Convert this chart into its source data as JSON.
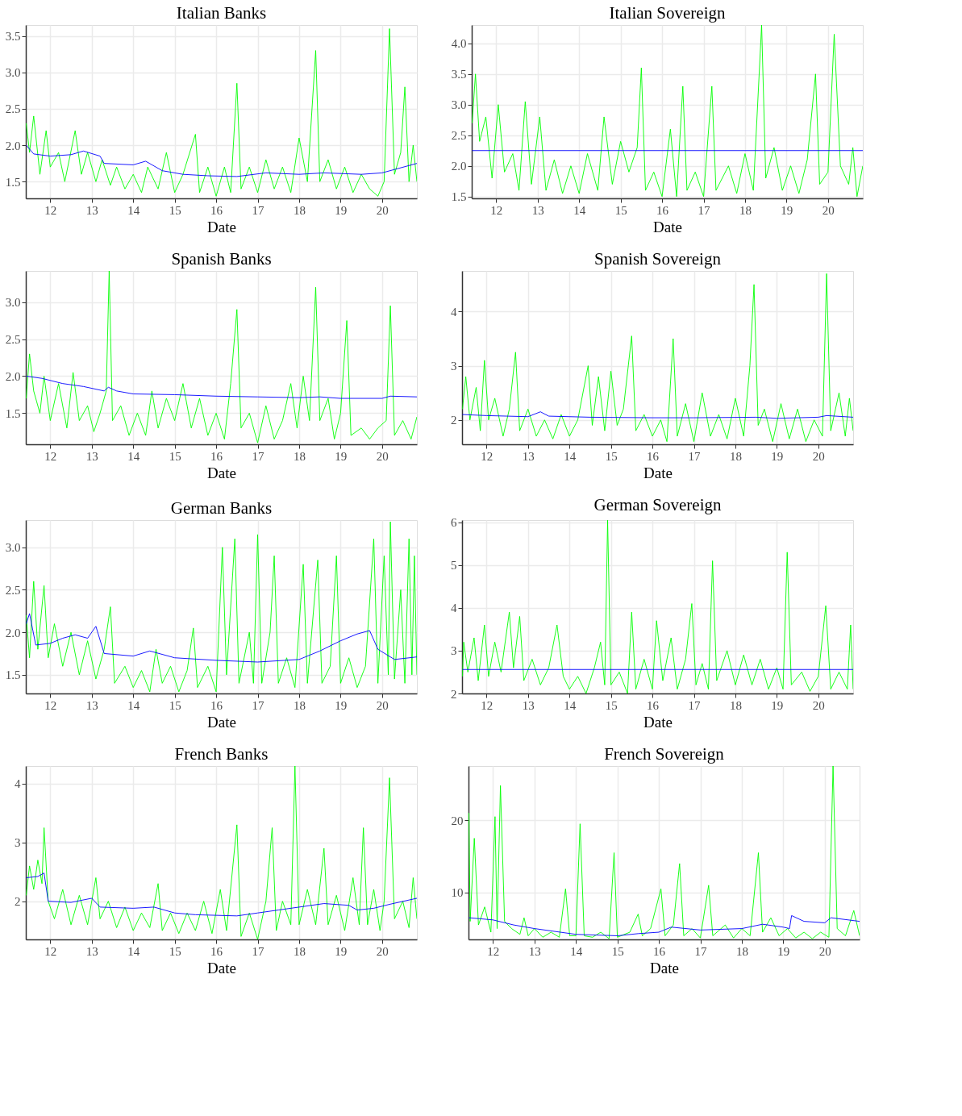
{
  "chart_data": [
    {
      "type": "line",
      "title": "Italian Banks",
      "xlabel": "Date",
      "grid": true,
      "xlim": [
        2011.41,
        2020.84
      ],
      "xticks": [
        {
          "value": 2012,
          "label": "12"
        },
        {
          "value": 2013,
          "label": "13"
        },
        {
          "value": 2014,
          "label": "14"
        },
        {
          "value": 2015,
          "label": "15"
        },
        {
          "value": 2016,
          "label": "16"
        },
        {
          "value": 2017,
          "label": "17"
        },
        {
          "value": 2018,
          "label": "18"
        },
        {
          "value": 2019,
          "label": "19"
        },
        {
          "value": 2020,
          "label": "20"
        }
      ],
      "ylim": [
        1.27,
        3.65
      ],
      "yticks": [
        1.5,
        {
          "value": 2,
          "label": "2.0"
        },
        2.5,
        {
          "value": 3,
          "label": "3.0"
        },
        3.5
      ],
      "series": [
        {
          "color": "#00ff00",
          "x": [
            2011.42,
            2011.5,
            2011.6,
            2011.75,
            2011.9,
            2012.0,
            2012.2,
            2012.35,
            2012.6,
            2012.75,
            2012.9,
            2013.1,
            2013.25,
            2013.45,
            2013.6,
            2013.8,
            2014.0,
            2014.2,
            2014.35,
            2014.6,
            2014.8,
            2015.0,
            2015.2,
            2015.5,
            2015.6,
            2015.8,
            2016.0,
            2016.2,
            2016.35,
            2016.5,
            2016.6,
            2016.8,
            2017.0,
            2017.2,
            2017.4,
            2017.6,
            2017.8,
            2018.0,
            2018.2,
            2018.4,
            2018.5,
            2018.7,
            2018.9,
            2019.1,
            2019.3,
            2019.5,
            2019.7,
            2019.9,
            2020.05,
            2020.18,
            2020.3,
            2020.45,
            2020.55,
            2020.65,
            2020.75,
            2020.84
          ],
          "values": [
            2.3,
            1.9,
            2.4,
            1.6,
            2.2,
            1.7,
            1.9,
            1.5,
            2.2,
            1.6,
            1.9,
            1.5,
            1.8,
            1.45,
            1.7,
            1.4,
            1.6,
            1.35,
            1.7,
            1.4,
            1.9,
            1.35,
            1.6,
            2.15,
            1.35,
            1.7,
            1.3,
            1.7,
            1.35,
            2.85,
            1.4,
            1.7,
            1.35,
            1.8,
            1.4,
            1.7,
            1.35,
            2.1,
            1.5,
            3.3,
            1.5,
            1.8,
            1.4,
            1.7,
            1.35,
            1.6,
            1.4,
            1.3,
            1.5,
            3.6,
            1.6,
            1.9,
            2.8,
            1.5,
            2.0,
            1.5
          ]
        },
        {
          "color": "#0000ff",
          "x": [
            2011.42,
            2011.6,
            2012.0,
            2012.5,
            2012.8,
            2013.2,
            2013.3,
            2014.0,
            2014.3,
            2014.7,
            2015.2,
            2015.8,
            2016.5,
            2017.2,
            2018.0,
            2018.6,
            2019.5,
            2020.0,
            2020.84
          ],
          "values": [
            2.0,
            1.88,
            1.85,
            1.87,
            1.92,
            1.85,
            1.75,
            1.73,
            1.78,
            1.65,
            1.6,
            1.58,
            1.57,
            1.62,
            1.6,
            1.62,
            1.6,
            1.62,
            1.75
          ]
        }
      ]
    },
    {
      "type": "line",
      "title": "Italian Sovereign",
      "xlabel": "Date",
      "grid": true,
      "xlim": [
        2011.41,
        2020.84
      ],
      "xticks": [
        {
          "value": 2012,
          "label": "12"
        },
        {
          "value": 2013,
          "label": "13"
        },
        {
          "value": 2014,
          "label": "14"
        },
        {
          "value": 2015,
          "label": "15"
        },
        {
          "value": 2016,
          "label": "16"
        },
        {
          "value": 2017,
          "label": "17"
        },
        {
          "value": 2018,
          "label": "18"
        },
        {
          "value": 2019,
          "label": "19"
        },
        {
          "value": 2020,
          "label": "20"
        }
      ],
      "ylim": [
        1.47,
        4.3
      ],
      "yticks": [
        1.5,
        {
          "value": 2,
          "label": "2.0"
        },
        2.5,
        {
          "value": 3,
          "label": "3.0"
        },
        3.5,
        {
          "value": 4,
          "label": "4.0"
        }
      ],
      "series": [
        {
          "color": "#00ff00",
          "x": [
            2011.42,
            2011.5,
            2011.6,
            2011.75,
            2011.9,
            2012.05,
            2012.2,
            2012.4,
            2012.55,
            2012.7,
            2012.85,
            2013.05,
            2013.2,
            2013.4,
            2013.6,
            2013.8,
            2014.0,
            2014.2,
            2014.45,
            2014.6,
            2014.8,
            2015.0,
            2015.2,
            2015.4,
            2015.5,
            2015.6,
            2015.8,
            2016.0,
            2016.2,
            2016.35,
            2016.5,
            2016.6,
            2016.8,
            2017.0,
            2017.2,
            2017.3,
            2017.6,
            2017.8,
            2018.0,
            2018.2,
            2018.4,
            2018.5,
            2018.7,
            2018.9,
            2019.1,
            2019.3,
            2019.5,
            2019.7,
            2019.8,
            2020.0,
            2020.15,
            2020.3,
            2020.5,
            2020.6,
            2020.7,
            2020.84
          ],
          "values": [
            2.7,
            3.5,
            2.4,
            2.8,
            1.8,
            3.0,
            1.9,
            2.2,
            1.6,
            3.05,
            1.7,
            2.8,
            1.6,
            2.1,
            1.55,
            2.0,
            1.55,
            2.2,
            1.6,
            2.8,
            1.7,
            2.4,
            1.9,
            2.3,
            3.6,
            1.6,
            1.9,
            1.5,
            2.6,
            1.5,
            3.3,
            1.6,
            1.9,
            1.5,
            3.3,
            1.6,
            2.0,
            1.55,
            2.2,
            1.6,
            4.3,
            1.8,
            2.3,
            1.6,
            2.0,
            1.55,
            2.1,
            3.5,
            1.7,
            1.9,
            4.15,
            2.0,
            1.7,
            2.3,
            1.5,
            2.0
          ]
        },
        {
          "color": "#0000ff",
          "x": [
            2011.42,
            2020.84
          ],
          "values": [
            2.25,
            2.25
          ]
        }
      ]
    },
    {
      "type": "line",
      "title": "Spanish Banks",
      "xlabel": "Date",
      "grid": true,
      "xlim": [
        2011.41,
        2020.84
      ],
      "xticks": [
        {
          "value": 2012,
          "label": "12"
        },
        {
          "value": 2013,
          "label": "13"
        },
        {
          "value": 2014,
          "label": "14"
        },
        {
          "value": 2015,
          "label": "15"
        },
        {
          "value": 2016,
          "label": "16"
        },
        {
          "value": 2017,
          "label": "17"
        },
        {
          "value": 2018,
          "label": "18"
        },
        {
          "value": 2019,
          "label": "19"
        },
        {
          "value": 2020,
          "label": "20"
        }
      ],
      "ylim": [
        1.08,
        3.42
      ],
      "yticks": [
        1.5,
        {
          "value": 2,
          "label": "2.0"
        },
        2.5,
        {
          "value": 3,
          "label": "3.0"
        }
      ],
      "series": [
        {
          "color": "#00ff00",
          "x": [
            2011.42,
            2011.5,
            2011.6,
            2011.75,
            2011.85,
            2012.0,
            2012.2,
            2012.4,
            2012.55,
            2012.7,
            2012.9,
            2013.05,
            2013.2,
            2013.35,
            2013.42,
            2013.5,
            2013.7,
            2013.9,
            2014.1,
            2014.3,
            2014.45,
            2014.6,
            2014.8,
            2015.0,
            2015.2,
            2015.4,
            2015.6,
            2015.8,
            2016.0,
            2016.2,
            2016.35,
            2016.5,
            2016.6,
            2016.8,
            2017.0,
            2017.2,
            2017.4,
            2017.6,
            2017.8,
            2017.95,
            2018.1,
            2018.25,
            2018.4,
            2018.5,
            2018.7,
            2018.85,
            2019.0,
            2019.15,
            2019.25,
            2019.5,
            2019.7,
            2019.9,
            2020.1,
            2020.2,
            2020.3,
            2020.5,
            2020.7,
            2020.84
          ],
          "values": [
            1.7,
            2.3,
            1.8,
            1.5,
            2.0,
            1.4,
            1.9,
            1.3,
            2.05,
            1.4,
            1.6,
            1.25,
            1.5,
            1.8,
            3.42,
            1.4,
            1.6,
            1.2,
            1.5,
            1.2,
            1.8,
            1.3,
            1.7,
            1.4,
            1.9,
            1.3,
            1.7,
            1.2,
            1.5,
            1.15,
            1.9,
            2.9,
            1.3,
            1.5,
            1.1,
            1.6,
            1.15,
            1.4,
            1.9,
            1.3,
            2.0,
            1.4,
            3.2,
            1.4,
            1.7,
            1.15,
            1.5,
            2.75,
            1.2,
            1.3,
            1.15,
            1.3,
            1.4,
            2.95,
            1.2,
            1.4,
            1.15,
            1.45
          ]
        },
        {
          "color": "#0000ff",
          "x": [
            2011.42,
            2011.8,
            2012.3,
            2012.8,
            2013.3,
            2013.4,
            2013.6,
            2014.0,
            2015.0,
            2016.0,
            2017.0,
            2018.0,
            2018.5,
            2019.0,
            2020.0,
            2020.2,
            2020.84
          ],
          "values": [
            2.0,
            1.97,
            1.9,
            1.86,
            1.8,
            1.85,
            1.8,
            1.76,
            1.75,
            1.73,
            1.72,
            1.71,
            1.72,
            1.7,
            1.7,
            1.73,
            1.72
          ]
        }
      ]
    },
    {
      "type": "line",
      "title": "Spanish Sovereign",
      "xlabel": "Date",
      "grid": true,
      "xlim": [
        2011.41,
        2020.84
      ],
      "xticks": [
        {
          "value": 2012,
          "label": "12"
        },
        {
          "value": 2013,
          "label": "13"
        },
        {
          "value": 2014,
          "label": "14"
        },
        {
          "value": 2015,
          "label": "15"
        },
        {
          "value": 2016,
          "label": "16"
        },
        {
          "value": 2017,
          "label": "17"
        },
        {
          "value": 2018,
          "label": "18"
        },
        {
          "value": 2019,
          "label": "19"
        },
        {
          "value": 2020,
          "label": "20"
        }
      ],
      "ylim": [
        1.55,
        4.75
      ],
      "yticks": [
        2,
        3,
        4
      ],
      "series": [
        {
          "color": "#00ff00",
          "x": [
            2011.42,
            2011.5,
            2011.6,
            2011.75,
            2011.85,
            2011.95,
            2012.05,
            2012.2,
            2012.4,
            2012.55,
            2012.7,
            2012.8,
            2013.0,
            2013.2,
            2013.4,
            2013.6,
            2013.8,
            2014.0,
            2014.2,
            2014.45,
            2014.55,
            2014.7,
            2014.85,
            2015.0,
            2015.15,
            2015.3,
            2015.5,
            2015.6,
            2015.8,
            2016.0,
            2016.2,
            2016.35,
            2016.5,
            2016.6,
            2016.8,
            2017.0,
            2017.2,
            2017.4,
            2017.6,
            2017.8,
            2018.0,
            2018.2,
            2018.35,
            2018.45,
            2018.55,
            2018.7,
            2018.9,
            2019.1,
            2019.3,
            2019.5,
            2019.7,
            2019.9,
            2020.1,
            2020.2,
            2020.3,
            2020.5,
            2020.65,
            2020.75,
            2020.84
          ],
          "values": [
            2.2,
            2.8,
            2.0,
            2.6,
            1.8,
            3.1,
            2.0,
            2.4,
            1.7,
            2.2,
            3.25,
            1.8,
            2.2,
            1.7,
            2.0,
            1.65,
            2.1,
            1.7,
            2.0,
            3.0,
            1.9,
            2.8,
            1.8,
            2.9,
            1.9,
            2.2,
            3.55,
            1.8,
            2.1,
            1.7,
            2.0,
            1.6,
            3.5,
            1.7,
            2.3,
            1.6,
            2.5,
            1.7,
            2.1,
            1.65,
            2.4,
            1.7,
            3.0,
            4.5,
            1.9,
            2.2,
            1.6,
            2.3,
            1.65,
            2.2,
            1.6,
            2.0,
            1.7,
            4.7,
            1.8,
            2.5,
            1.7,
            2.4,
            1.8
          ]
        },
        {
          "color": "#0000ff",
          "x": [
            2011.42,
            2012.0,
            2013.0,
            2013.3,
            2013.5,
            2014.5,
            2016.0,
            2017.0,
            2018.5,
            2019.0,
            2020.0,
            2020.2,
            2020.84
          ],
          "values": [
            2.1,
            2.08,
            2.06,
            2.15,
            2.07,
            2.05,
            2.04,
            2.04,
            2.05,
            2.03,
            2.05,
            2.08,
            2.05
          ]
        }
      ]
    },
    {
      "type": "line",
      "title": "German Banks",
      "xlabel": "Date",
      "grid": true,
      "xlim": [
        2011.41,
        2020.84
      ],
      "xticks": [
        {
          "value": 2012,
          "label": "12"
        },
        {
          "value": 2013,
          "label": "13"
        },
        {
          "value": 2014,
          "label": "14"
        },
        {
          "value": 2015,
          "label": "15"
        },
        {
          "value": 2016,
          "label": "16"
        },
        {
          "value": 2017,
          "label": "17"
        },
        {
          "value": 2018,
          "label": "18"
        },
        {
          "value": 2019,
          "label": "19"
        },
        {
          "value": 2020,
          "label": "20"
        }
      ],
      "ylim": [
        1.28,
        3.32
      ],
      "yticks": [
        1.5,
        {
          "value": 2,
          "label": "2.0"
        },
        2.5,
        {
          "value": 3,
          "label": "3.0"
        }
      ],
      "series": [
        {
          "color": "#00ff00",
          "x": [
            2011.42,
            2011.5,
            2011.6,
            2011.7,
            2011.85,
            2011.95,
            2012.1,
            2012.3,
            2012.5,
            2012.7,
            2012.9,
            2013.1,
            2013.3,
            2013.45,
            2013.55,
            2013.8,
            2014.0,
            2014.2,
            2014.4,
            2014.55,
            2014.7,
            2014.9,
            2015.1,
            2015.3,
            2015.45,
            2015.55,
            2015.8,
            2016.0,
            2016.15,
            2016.25,
            2016.45,
            2016.55,
            2016.8,
            2016.9,
            2017.0,
            2017.1,
            2017.3,
            2017.4,
            2017.5,
            2017.7,
            2017.9,
            2018.1,
            2018.2,
            2018.45,
            2018.55,
            2018.75,
            2018.9,
            2019.0,
            2019.2,
            2019.4,
            2019.6,
            2019.8,
            2019.9,
            2020.05,
            2020.15,
            2020.2,
            2020.3,
            2020.45,
            2020.55,
            2020.65,
            2020.72,
            2020.78,
            2020.84
          ],
          "values": [
            2.2,
            1.7,
            2.6,
            1.8,
            2.55,
            1.7,
            2.1,
            1.6,
            2.0,
            1.5,
            1.9,
            1.45,
            1.8,
            2.3,
            1.4,
            1.6,
            1.35,
            1.55,
            1.3,
            1.8,
            1.4,
            1.6,
            1.3,
            1.55,
            2.05,
            1.35,
            1.6,
            1.3,
            3.0,
            1.5,
            3.1,
            1.4,
            2.0,
            1.4,
            3.15,
            1.4,
            2.0,
            2.9,
            1.4,
            1.7,
            1.35,
            2.8,
            1.4,
            2.85,
            1.4,
            1.6,
            2.9,
            1.4,
            1.7,
            1.35,
            1.6,
            3.1,
            1.4,
            2.9,
            1.5,
            3.3,
            1.45,
            2.5,
            1.4,
            3.1,
            1.5,
            2.9,
            1.5
          ]
        },
        {
          "color": "#0000ff",
          "x": [
            2011.42,
            2011.5,
            2011.65,
            2012.0,
            2012.3,
            2012.6,
            2012.9,
            2013.1,
            2013.3,
            2014.0,
            2014.4,
            2015.0,
            2016.0,
            2017.0,
            2018.0,
            2018.5,
            2019.0,
            2019.4,
            2019.7,
            2019.9,
            2020.3,
            2020.84
          ],
          "values": [
            2.1,
            2.22,
            1.85,
            1.87,
            1.93,
            1.97,
            1.93,
            2.07,
            1.75,
            1.72,
            1.78,
            1.7,
            1.67,
            1.65,
            1.68,
            1.78,
            1.9,
            1.98,
            2.02,
            1.8,
            1.68,
            1.71
          ]
        }
      ]
    },
    {
      "type": "line",
      "title": "German Sovereign",
      "xlabel": "Date",
      "grid": true,
      "xlim": [
        2011.41,
        2020.84
      ],
      "xticks": [
        {
          "value": 2012,
          "label": "12"
        },
        {
          "value": 2013,
          "label": "13"
        },
        {
          "value": 2014,
          "label": "14"
        },
        {
          "value": 2015,
          "label": "15"
        },
        {
          "value": 2016,
          "label": "16"
        },
        {
          "value": 2017,
          "label": "17"
        },
        {
          "value": 2018,
          "label": "18"
        },
        {
          "value": 2019,
          "label": "19"
        },
        {
          "value": 2020,
          "label": "20"
        }
      ],
      "ylim": [
        2.0,
        6.05
      ],
      "yticks": [
        2,
        3,
        4,
        5,
        6
      ],
      "series": [
        {
          "color": "#00ff00",
          "x": [
            2011.42,
            2011.45,
            2011.55,
            2011.7,
            2011.8,
            2011.95,
            2012.05,
            2012.2,
            2012.35,
            2012.55,
            2012.65,
            2012.8,
            2012.9,
            2013.1,
            2013.3,
            2013.5,
            2013.7,
            2013.85,
            2014.0,
            2014.2,
            2014.4,
            2014.6,
            2014.75,
            2014.85,
            2014.92,
            2015.0,
            2015.2,
            2015.4,
            2015.5,
            2015.6,
            2015.8,
            2016.0,
            2016.1,
            2016.25,
            2016.45,
            2016.6,
            2016.8,
            2016.95,
            2017.05,
            2017.2,
            2017.35,
            2017.45,
            2017.55,
            2017.8,
            2018.0,
            2018.2,
            2018.4,
            2018.6,
            2018.8,
            2019.0,
            2019.15,
            2019.25,
            2019.35,
            2019.6,
            2019.8,
            2020.0,
            2020.18,
            2020.3,
            2020.5,
            2020.7,
            2020.78,
            2020.84
          ],
          "values": [
            2.4,
            3.2,
            2.5,
            3.3,
            2.3,
            3.6,
            2.4,
            3.2,
            2.5,
            3.9,
            2.6,
            3.8,
            2.3,
            2.8,
            2.2,
            2.6,
            3.6,
            2.4,
            2.1,
            2.4,
            2.0,
            2.6,
            3.2,
            2.2,
            6.05,
            2.2,
            2.5,
            2.0,
            3.9,
            2.1,
            2.8,
            2.1,
            3.7,
            2.3,
            3.3,
            2.1,
            2.8,
            4.1,
            2.2,
            2.7,
            2.1,
            5.1,
            2.3,
            3.0,
            2.2,
            2.9,
            2.2,
            2.8,
            2.1,
            2.6,
            2.1,
            5.3,
            2.2,
            2.5,
            2.05,
            2.4,
            4.05,
            2.1,
            2.5,
            2.1,
            3.6,
            2.1
          ]
        },
        {
          "color": "#0000ff",
          "x": [
            2011.42,
            2020.84
          ],
          "values": [
            2.56,
            2.56
          ]
        }
      ]
    },
    {
      "type": "line",
      "title": "French Banks",
      "xlabel": "Date",
      "grid": true,
      "xlim": [
        2011.41,
        2020.84
      ],
      "xticks": [
        {
          "value": 2012,
          "label": "12"
        },
        {
          "value": 2013,
          "label": "13"
        },
        {
          "value": 2014,
          "label": "14"
        },
        {
          "value": 2015,
          "label": "15"
        },
        {
          "value": 2016,
          "label": "16"
        },
        {
          "value": 2017,
          "label": "17"
        },
        {
          "value": 2018,
          "label": "18"
        },
        {
          "value": 2019,
          "label": "19"
        },
        {
          "value": 2020,
          "label": "20"
        }
      ],
      "ylim": [
        1.35,
        4.3
      ],
      "yticks": [
        2,
        3,
        4
      ],
      "series": [
        {
          "color": "#00ff00",
          "x": [
            2011.42,
            2011.5,
            2011.6,
            2011.7,
            2011.8,
            2011.85,
            2011.95,
            2012.1,
            2012.3,
            2012.5,
            2012.7,
            2012.9,
            2013.1,
            2013.2,
            2013.4,
            2013.6,
            2013.8,
            2014.0,
            2014.2,
            2014.4,
            2014.6,
            2014.7,
            2014.9,
            2015.1,
            2015.3,
            2015.5,
            2015.7,
            2015.9,
            2016.1,
            2016.25,
            2016.5,
            2016.6,
            2016.8,
            2017.0,
            2017.2,
            2017.35,
            2017.45,
            2017.6,
            2017.8,
            2017.9,
            2018.0,
            2018.2,
            2018.4,
            2018.6,
            2018.7,
            2018.9,
            2019.1,
            2019.3,
            2019.45,
            2019.55,
            2019.65,
            2019.8,
            2019.95,
            2020.05,
            2020.18,
            2020.3,
            2020.5,
            2020.65,
            2020.75,
            2020.84
          ],
          "values": [
            2.1,
            2.6,
            2.2,
            2.7,
            2.3,
            3.25,
            2.0,
            1.7,
            2.2,
            1.6,
            2.1,
            1.6,
            2.4,
            1.7,
            2.0,
            1.55,
            1.9,
            1.5,
            1.8,
            1.55,
            2.3,
            1.5,
            1.8,
            1.45,
            1.8,
            1.5,
            2.0,
            1.45,
            2.2,
            1.5,
            3.3,
            1.4,
            1.8,
            1.35,
            2.0,
            3.25,
            1.5,
            2.0,
            1.6,
            4.3,
            1.6,
            2.2,
            1.6,
            2.9,
            1.6,
            2.1,
            1.5,
            2.4,
            1.6,
            3.25,
            1.6,
            2.2,
            1.5,
            2.0,
            4.1,
            1.7,
            2.0,
            1.55,
            2.4,
            1.7
          ]
        },
        {
          "color": "#0000ff",
          "x": [
            2011.42,
            2011.7,
            2011.85,
            2011.95,
            2012.5,
            2013.0,
            2013.2,
            2014.0,
            2014.5,
            2015.0,
            2015.5,
            2016.5,
            2017.0,
            2017.5,
            2018.0,
            2018.6,
            2019.2,
            2019.4,
            2019.8,
            2020.2,
            2020.84
          ],
          "values": [
            2.4,
            2.42,
            2.48,
            2.0,
            1.98,
            2.05,
            1.9,
            1.88,
            1.9,
            1.8,
            1.77,
            1.75,
            1.8,
            1.85,
            1.9,
            1.96,
            1.93,
            1.85,
            1.88,
            1.95,
            2.05
          ]
        }
      ]
    },
    {
      "type": "line",
      "title": "French Sovereign",
      "xlabel": "Date",
      "grid": true,
      "xlim": [
        2011.41,
        2020.84
      ],
      "xticks": [
        {
          "value": 2012,
          "label": "12"
        },
        {
          "value": 2013,
          "label": "13"
        },
        {
          "value": 2014,
          "label": "14"
        },
        {
          "value": 2015,
          "label": "15"
        },
        {
          "value": 2016,
          "label": "16"
        },
        {
          "value": 2017,
          "label": "17"
        },
        {
          "value": 2018,
          "label": "18"
        },
        {
          "value": 2019,
          "label": "19"
        },
        {
          "value": 2020,
          "label": "20"
        }
      ],
      "ylim": [
        3.5,
        27.5
      ],
      "yticks": [
        10,
        20
      ],
      "series": [
        {
          "color": "#00ff00",
          "x": [
            2011.42,
            2011.45,
            2011.55,
            2011.65,
            2011.8,
            2011.95,
            2012.05,
            2012.1,
            2012.18,
            2012.28,
            2012.45,
            2012.65,
            2012.75,
            2012.85,
            2013.0,
            2013.2,
            2013.4,
            2013.6,
            2013.75,
            2013.85,
            2014.0,
            2014.1,
            2014.2,
            2014.4,
            2014.6,
            2014.8,
            2014.92,
            2015.0,
            2015.3,
            2015.5,
            2015.6,
            2015.8,
            2016.05,
            2016.15,
            2016.35,
            2016.5,
            2016.6,
            2016.8,
            2017.0,
            2017.2,
            2017.3,
            2017.6,
            2017.8,
            2018.0,
            2018.2,
            2018.4,
            2018.5,
            2018.7,
            2018.9,
            2019.1,
            2019.3,
            2019.5,
            2019.7,
            2019.9,
            2020.1,
            2020.2,
            2020.3,
            2020.5,
            2020.7,
            2020.84
          ],
          "values": [
            21.0,
            6.0,
            17.5,
            5.5,
            8.0,
            4.5,
            20.5,
            5.0,
            24.8,
            6.0,
            5.0,
            4.2,
            6.5,
            4.0,
            5.0,
            3.8,
            4.5,
            3.8,
            10.5,
            4.0,
            4.0,
            19.5,
            4.0,
            3.8,
            4.5,
            3.6,
            15.5,
            3.8,
            4.5,
            7.0,
            4.0,
            5.0,
            10.5,
            4.0,
            5.5,
            14.0,
            4.0,
            5.0,
            3.7,
            11.0,
            4.0,
            5.5,
            3.7,
            5.0,
            4.0,
            15.5,
            4.5,
            6.5,
            4.0,
            5.0,
            3.7,
            4.5,
            3.6,
            4.5,
            3.8,
            27.5,
            5.0,
            4.0,
            7.5,
            4.0
          ]
        },
        {
          "color": "#0000ff",
          "x": [
            2011.42,
            2012.0,
            2012.5,
            2013.0,
            2014.0,
            2015.0,
            2015.5,
            2016.0,
            2016.3,
            2017.0,
            2018.0,
            2018.5,
            2019.0,
            2019.15,
            2019.2,
            2019.5,
            2020.0,
            2020.15,
            2020.84
          ],
          "values": [
            6.5,
            6.2,
            5.5,
            5.0,
            4.2,
            4.0,
            4.3,
            4.5,
            5.2,
            4.8,
            5.0,
            5.6,
            5.2,
            5.0,
            6.8,
            6.0,
            5.8,
            6.5,
            6.0
          ]
        }
      ]
    }
  ]
}
